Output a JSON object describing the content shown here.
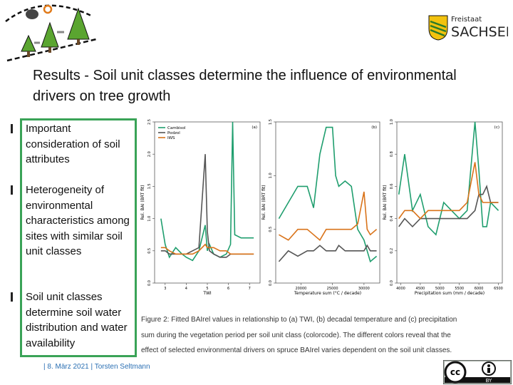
{
  "header": {
    "title": [
      "Results - Soil unit classes determine the influence of environmental",
      "drivers on tree growth"
    ],
    "logo": [
      "Freistaat",
      "SACHSEN"
    ]
  },
  "bullets": [
    "Important consideration of soil attributes",
    "Heterogeneity of environmental characteristics among sites with similar soil unit classes",
    "Soil unit classes determine soil water distribution and water availability"
  ],
  "chart_data": [
    {
      "type": "line",
      "panel": "(a)",
      "x_label": "TWI",
      "y_label": "Rel. BAI (BRT fit)",
      "legend": "top-left",
      "x": [
        2.8,
        3.0,
        3.2,
        3.5,
        3.8,
        4.0,
        4.3,
        4.6,
        4.9,
        5.0,
        5.1,
        5.3,
        5.6,
        5.9,
        6.1,
        6.2,
        6.3,
        6.6,
        7.0,
        7.2
      ],
      "xlim": [
        2.5,
        7.5
      ],
      "xticks": [
        3,
        4,
        5,
        6,
        7
      ],
      "ylim": [
        0,
        2.5
      ],
      "yticks": [
        {
          "value": 0,
          "label": "0.0"
        },
        {
          "value": 0.5,
          "label": "0.5"
        },
        {
          "value": 1,
          "label": "1.0"
        },
        {
          "value": 1.5,
          "label": "1.5"
        },
        {
          "value": 2,
          "label": "2.0"
        },
        {
          "value": 2.5,
          "label": "2.5"
        }
      ],
      "series": [
        {
          "name": "Cambisol",
          "color": "#1f9e6e",
          "values": [
            1.0,
            0.6,
            0.4,
            0.55,
            0.45,
            0.4,
            0.35,
            0.5,
            0.9,
            0.5,
            0.6,
            0.45,
            0.4,
            0.45,
            0.6,
            2.5,
            0.75,
            0.7,
            0.7,
            0.7
          ]
        },
        {
          "name": "Podzol",
          "color": "#555555",
          "values": [
            0.5,
            0.5,
            0.45,
            0.45,
            0.45,
            0.45,
            0.5,
            0.55,
            2.0,
            0.8,
            0.5,
            0.45,
            0.4,
            0.4,
            0.45,
            0.45,
            0.45,
            0.45,
            0.45,
            0.45
          ]
        },
        {
          "name": "IWS",
          "color": "#d9731a",
          "values": [
            0.55,
            0.55,
            0.5,
            0.45,
            0.45,
            0.45,
            0.45,
            0.5,
            0.6,
            0.55,
            0.55,
            0.55,
            0.5,
            0.5,
            0.45,
            0.45,
            0.45,
            0.45,
            0.45,
            0.45
          ]
        }
      ]
    },
    {
      "type": "line",
      "panel": "(b)",
      "x_label": "Temperature sum (°C / decade)",
      "y_label": "Rel. BAI (BRT fit)",
      "x": [
        16500,
        18000,
        19500,
        21000,
        22000,
        23000,
        24000,
        25000,
        25500,
        26000,
        27000,
        28000,
        29000,
        30000,
        30500,
        31000,
        32000
      ],
      "xlim": [
        16000,
        32500
      ],
      "xticks": [
        20000,
        25000,
        30000
      ],
      "ylim": [
        0,
        1.5
      ],
      "yticks": [
        {
          "value": 0,
          "label": "0.0"
        },
        {
          "value": 0.5,
          "label": "0.5"
        },
        {
          "value": 1,
          "label": "1.0"
        },
        {
          "value": 1.5,
          "label": "1.5"
        }
      ],
      "series": [
        {
          "color": "#1f9e6e",
          "values": [
            0.6,
            0.75,
            0.9,
            0.9,
            0.7,
            1.2,
            1.45,
            1.45,
            1.0,
            0.9,
            0.95,
            0.9,
            0.5,
            0.4,
            0.3,
            0.2,
            0.25
          ]
        },
        {
          "color": "#555555",
          "values": [
            0.2,
            0.3,
            0.25,
            0.3,
            0.3,
            0.35,
            0.3,
            0.3,
            0.3,
            0.35,
            0.3,
            0.3,
            0.3,
            0.3,
            0.35,
            0.3,
            0.3
          ]
        },
        {
          "color": "#d9731a",
          "values": [
            0.45,
            0.4,
            0.5,
            0.5,
            0.45,
            0.4,
            0.5,
            0.5,
            0.5,
            0.5,
            0.5,
            0.5,
            0.55,
            0.85,
            0.5,
            0.45,
            0.5
          ]
        }
      ]
    },
    {
      "type": "line",
      "panel": "(c)",
      "x_label": "Precipitation sum (mm / decade)",
      "y_label": "Rel. BAI (BRT fit)",
      "x": [
        3950,
        4100,
        4300,
        4500,
        4700,
        4900,
        5100,
        5300,
        5500,
        5700,
        5900,
        6000,
        6100,
        6200,
        6300,
        6500
      ],
      "xlim": [
        3900,
        6600
      ],
      "xticks": [
        4000,
        4500,
        5000,
        5500,
        6000,
        6500
      ],
      "ylim": [
        0,
        1
      ],
      "yticks": [
        {
          "value": 0,
          "label": "0.0"
        },
        {
          "value": 0.2,
          "label": "0.2"
        },
        {
          "value": 0.4,
          "label": "0.4"
        },
        {
          "value": 0.6,
          "label": "0.6"
        },
        {
          "value": 0.8,
          "label": "0.8"
        },
        {
          "value": 1,
          "label": "1.0"
        }
      ],
      "series": [
        {
          "color": "#1f9e6e",
          "values": [
            0.55,
            0.8,
            0.45,
            0.55,
            0.35,
            0.3,
            0.5,
            0.45,
            0.4,
            0.45,
            1.0,
            0.7,
            0.35,
            0.35,
            0.5,
            0.45
          ]
        },
        {
          "color": "#555555",
          "values": [
            0.35,
            0.4,
            0.35,
            0.4,
            0.4,
            0.4,
            0.4,
            0.4,
            0.4,
            0.4,
            0.45,
            0.55,
            0.55,
            0.6,
            0.5,
            0.5
          ]
        },
        {
          "color": "#d9731a",
          "values": [
            0.4,
            0.45,
            0.45,
            0.4,
            0.45,
            0.45,
            0.45,
            0.45,
            0.45,
            0.5,
            0.75,
            0.55,
            0.5,
            0.5,
            0.5,
            0.5
          ]
        }
      ]
    }
  ],
  "caption": [
    "Figure 2: Fitted BAIrel values in relationship to (a) TWI, (b) decadal temperature and (c) precipitation",
    "sum during the vegetation period per soil unit class (colorcode). The different colors reveal that the",
    "effect of selected environmental drivers on spruce BAIrel varies dependent on the soil unit classes."
  ],
  "footer": "| 8. März 2021 | Torsten Seltmann",
  "license": [
    "cc",
    "BY"
  ]
}
